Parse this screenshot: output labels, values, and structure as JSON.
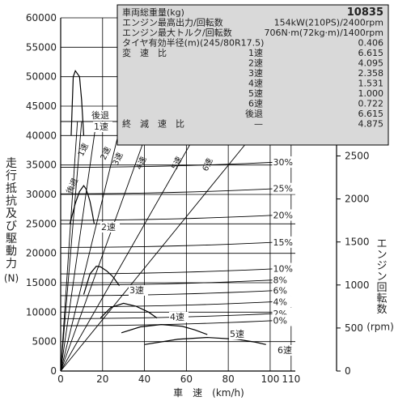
{
  "chart_data": {
    "type": "line",
    "xlabel": "車　速　(km/h)",
    "ylabel_left": "走行抵抗及び駆動力(N)",
    "ylabel_right": "エンジン回転数(rpm)",
    "x_ticks": [
      0,
      20,
      40,
      60,
      80,
      100,
      110
    ],
    "y_ticks": [
      0,
      5000,
      10000,
      15000,
      20000,
      25000,
      30000,
      35000,
      40000,
      45000,
      50000,
      55000,
      60000
    ],
    "ylim": [
      0,
      60000
    ],
    "rpm_ticks": [
      500,
      1000,
      1500,
      2000,
      2500
    ],
    "rpm_lim": [
      0,
      2900
    ],
    "rpm_per_unit": 0.0714,
    "grade_labels": [
      "30%",
      "25%",
      "20%",
      "15%",
      "10%",
      "8%",
      "6%",
      "4%",
      "2%",
      "0%"
    ],
    "grade_values": [
      35500,
      31000,
      26500,
      21900,
      17400,
      15500,
      13700,
      11800,
      9800,
      8600
    ],
    "gear_labels": [
      "後退",
      "1速",
      "2速",
      "3速",
      "4速",
      "5速",
      "6速"
    ],
    "gear_ratios": [
      6.615,
      6.615,
      4.095,
      2.358,
      1.531,
      1.0,
      0.722
    ],
    "gear_line_labels": [
      "後退",
      "1速",
      "2速",
      "3速",
      "4速",
      "5速",
      "6速"
    ],
    "gear_curve_labels": [
      "後退\n1速",
      "2速",
      "3速",
      "4速",
      "5速",
      "6速"
    ],
    "series": [
      {
        "name": "後退",
        "x": [
          5,
          6,
          7,
          9,
          10,
          11
        ],
        "y": [
          40000,
          50000,
          51000,
          50000,
          46000,
          40000
        ]
      },
      {
        "name": "1速",
        "x": [
          5,
          6,
          7,
          9,
          10,
          11
        ],
        "y": [
          40000,
          50000,
          51000,
          50000,
          46000,
          40000
        ]
      },
      {
        "name": "2速",
        "x": [
          4.4,
          7,
          9,
          11,
          12,
          13,
          14,
          15,
          16
        ],
        "y": [
          25000,
          28500,
          30500,
          31500,
          31000,
          30000,
          28800,
          27000,
          25000
        ]
      },
      {
        "name": "3速",
        "x": [
          11,
          14,
          17,
          19,
          22,
          25,
          28
        ],
        "y": [
          13000,
          16500,
          17800,
          17700,
          17000,
          16000,
          14500
        ]
      },
      {
        "name": "4速",
        "x": [
          19,
          24,
          30,
          36,
          42,
          46
        ],
        "y": [
          9000,
          10800,
          11500,
          11000,
          10000,
          9000
        ]
      },
      {
        "name": "5速",
        "x": [
          29,
          38,
          48,
          58,
          64,
          70
        ],
        "y": [
          6500,
          7500,
          7900,
          7600,
          7000,
          6200
        ]
      },
      {
        "name": "6速",
        "x": [
          40,
          56,
          70,
          84,
          93,
          98
        ],
        "y": [
          4500,
          5400,
          5700,
          5400,
          4900,
          4500
        ]
      }
    ]
  },
  "spec_table": {
    "rows": [
      {
        "label": "車両総重量(kg)",
        "value": "10835",
        "bold": true
      },
      {
        "label": "エンジン最高出力/回転数",
        "value": "154kW(210PS)/2400rpm"
      },
      {
        "label": "エンジン最大トルク/回転数",
        "value": "706N·m(72kg·m)/1400rpm"
      },
      {
        "label": "タイヤ有効半径(m)(245/80R17.5)",
        "value": "0.406"
      }
    ],
    "ratio_title": "変　速　比",
    "ratios": [
      {
        "gear": "1速",
        "value": "6.615"
      },
      {
        "gear": "2速",
        "value": "4.095"
      },
      {
        "gear": "3速",
        "value": "2.358"
      },
      {
        "gear": "4速",
        "value": "1.531"
      },
      {
        "gear": "5速",
        "value": "1.000"
      },
      {
        "gear": "6速",
        "value": "0.722"
      },
      {
        "gear": "後退",
        "value": "6.615"
      }
    ],
    "final_title": "終　減　速　比",
    "final_gear": "—",
    "final_value": "4.875"
  }
}
